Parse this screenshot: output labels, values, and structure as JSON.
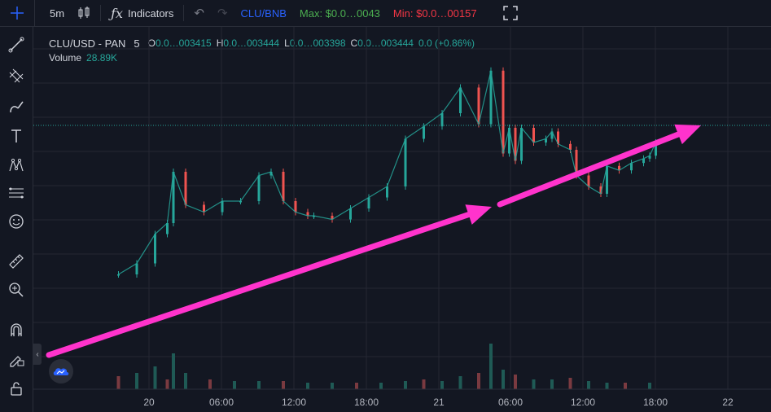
{
  "toolbar": {
    "interval": "5m",
    "indicators_label": "Indicators",
    "pair": "CLU/BNB",
    "max_label": "Max: $0.0…0043",
    "min_label": "Min: $0.0…00157"
  },
  "legend": {
    "symbol": "CLU/USD - PAN",
    "interval": "5",
    "o_label": "O",
    "o_value": "0.0…003415",
    "h_label": "H",
    "h_value": "0.0…003444",
    "l_label": "L",
    "l_value": "0.0…003398",
    "c_label": "C",
    "c_value": "0.0…003444",
    "change": "0.0 (+0.86%)",
    "volume_label": "Volume",
    "volume_value": "28.89K"
  },
  "colors": {
    "background": "#131722",
    "grid": "#242733",
    "up": "#26a69a",
    "down": "#ef5350",
    "arrow": "#ff33cc",
    "pair": "#2962ff",
    "max": "#4caf50",
    "min": "#f23645"
  },
  "icons": [
    "crosshair-icon",
    "trend-line-icon",
    "fib-icon",
    "brush-icon",
    "text-icon",
    "pattern-icon",
    "prediction-icon",
    "emoji-icon",
    "ruler-icon",
    "zoom-in-icon",
    "magnet-icon",
    "lock-edit-icon",
    "unlock-icon"
  ],
  "chart_data": {
    "type": "candlestick",
    "title": "",
    "x_ticks": [
      "20",
      "06:00",
      "12:00",
      "18:00",
      "21",
      "06:00",
      "12:00",
      "18:00",
      "22"
    ],
    "x": [
      0.5,
      2.0,
      3.5,
      4.5,
      5.0,
      6.0,
      7.5,
      9.0,
      10.5,
      12.0,
      13.0,
      14.0,
      15.0,
      16.0,
      16.5,
      18.0,
      19.5,
      21.0,
      22.5,
      24.0,
      25.5,
      27.0,
      28.5,
      30.0,
      31.0,
      32.0,
      32.5,
      33.0,
      33.5,
      34.5,
      35.5,
      36.0,
      36.5,
      37.5,
      38.0,
      39.0,
      40.0,
      40.5,
      41.5,
      42.5,
      43.5,
      44.0,
      44.5
    ],
    "close": [
      120,
      135,
      175,
      190,
      260,
      215,
      205,
      220,
      220,
      255,
      260,
      220,
      205,
      200,
      200,
      195,
      210,
      225,
      240,
      305,
      322,
      340,
      375,
      325,
      398,
      285,
      320,
      275,
      320,
      300,
      305,
      315,
      298,
      290,
      255,
      240,
      230,
      268,
      262,
      272,
      278,
      282,
      300
    ],
    "volume_series": {
      "name": "Volume",
      "x": [
        0.5,
        2.0,
        3.5,
        4.5,
        5.0,
        6.0,
        8.0,
        10.0,
        12.0,
        14.0,
        16.0,
        18.0,
        20.0,
        22.0,
        24.0,
        25.5,
        27.0,
        28.5,
        30.0,
        31.0,
        32.0,
        33.0,
        34.5,
        36.0,
        37.5,
        39.0,
        40.5,
        42.0,
        44.0
      ],
      "values": [
        8,
        10,
        14,
        6,
        22,
        10,
        6,
        5,
        5,
        5,
        4,
        4,
        4,
        4,
        5,
        6,
        5,
        8,
        10,
        28,
        12,
        9,
        6,
        6,
        7,
        5,
        4,
        4,
        4
      ]
    }
  }
}
